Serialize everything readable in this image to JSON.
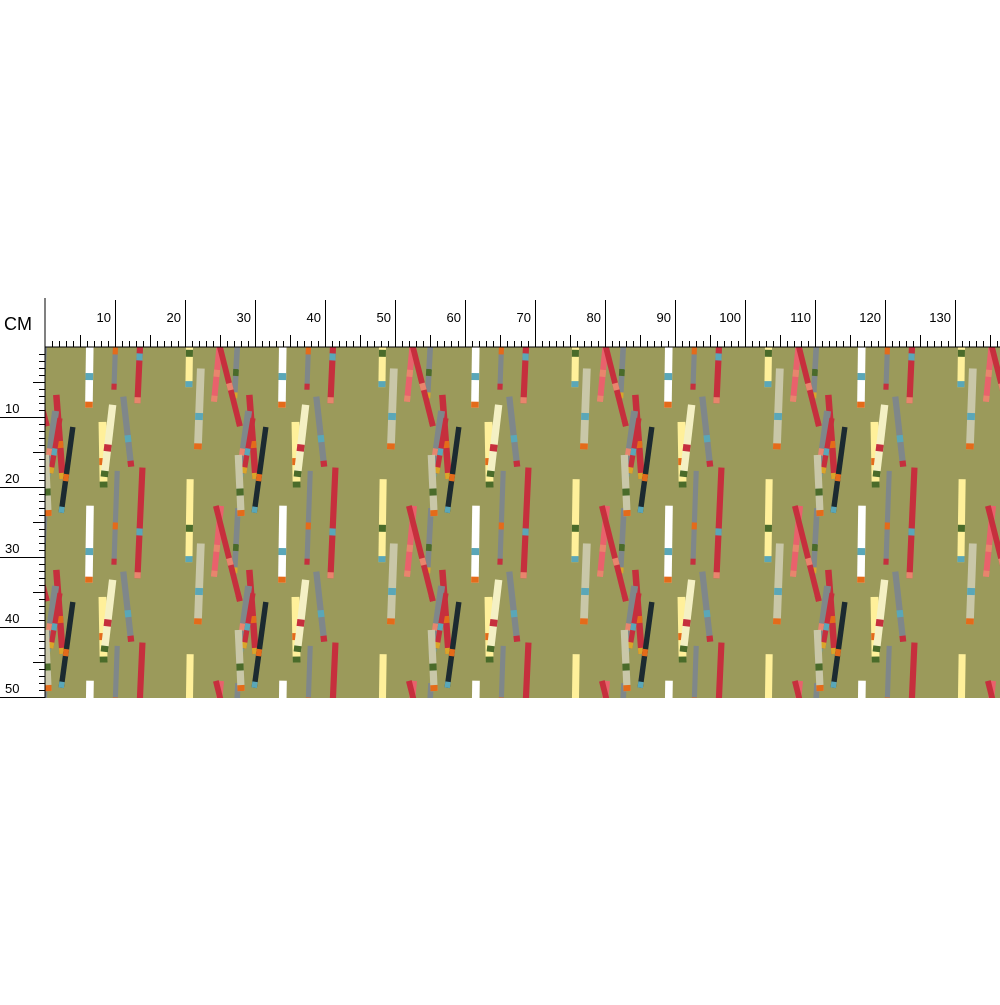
{
  "unit": "CM",
  "top_ruler": {
    "labels": [
      10,
      20,
      30,
      40,
      50,
      60,
      70,
      80,
      90,
      100,
      110,
      120,
      130
    ]
  },
  "left_ruler": {
    "labels": [
      10,
      20,
      30,
      40,
      50
    ]
  }
}
